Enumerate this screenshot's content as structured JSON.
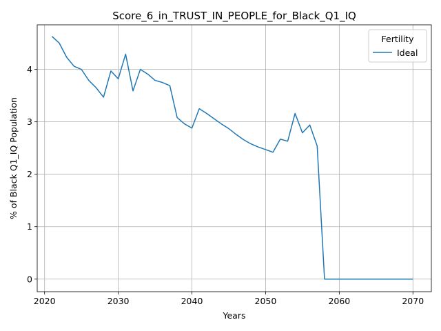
{
  "chart_data": {
    "type": "line",
    "title": "Score_6_in_TRUST_IN_PEOPLE_for_Black_Q1_IQ",
    "xlabel": "Years",
    "ylabel": "% of Black Q1_IQ Population",
    "xlim": [
      2019,
      2072.5
    ],
    "ylim": [
      -0.24,
      4.85
    ],
    "xticks": [
      2020,
      2030,
      2040,
      2050,
      2060,
      2070
    ],
    "yticks": [
      0,
      1,
      2,
      3,
      4
    ],
    "grid": true,
    "legend": {
      "title": "Fertility",
      "position": "top-right"
    },
    "series": [
      {
        "name": "Ideal",
        "color": "#1f77b4",
        "x": [
          2021,
          2022,
          2023,
          2024,
          2025,
          2026,
          2027,
          2028,
          2029,
          2030,
          2031,
          2032,
          2033,
          2034,
          2035,
          2036,
          2037,
          2038,
          2039,
          2040,
          2041,
          2042,
          2043,
          2044,
          2045,
          2046,
          2047,
          2048,
          2049,
          2050,
          2051,
          2052,
          2053,
          2054,
          2055,
          2056,
          2057,
          2058,
          2059,
          2060,
          2061,
          2062,
          2063,
          2064,
          2065,
          2066,
          2067,
          2068,
          2069,
          2070
        ],
        "values": [
          4.63,
          4.5,
          4.23,
          4.06,
          4.0,
          3.79,
          3.65,
          3.47,
          3.97,
          3.82,
          4.29,
          3.59,
          4.0,
          3.91,
          3.79,
          3.75,
          3.69,
          3.08,
          2.96,
          2.88,
          3.25,
          3.16,
          3.06,
          2.96,
          2.87,
          2.76,
          2.66,
          2.58,
          2.52,
          2.47,
          2.42,
          2.67,
          2.63,
          3.16,
          2.79,
          2.94,
          2.54,
          0.0,
          0.0,
          0.0,
          0.0,
          0.0,
          0.0,
          0.0,
          0.0,
          0.0,
          0.0,
          0.0,
          0.0,
          0.0
        ]
      }
    ]
  }
}
